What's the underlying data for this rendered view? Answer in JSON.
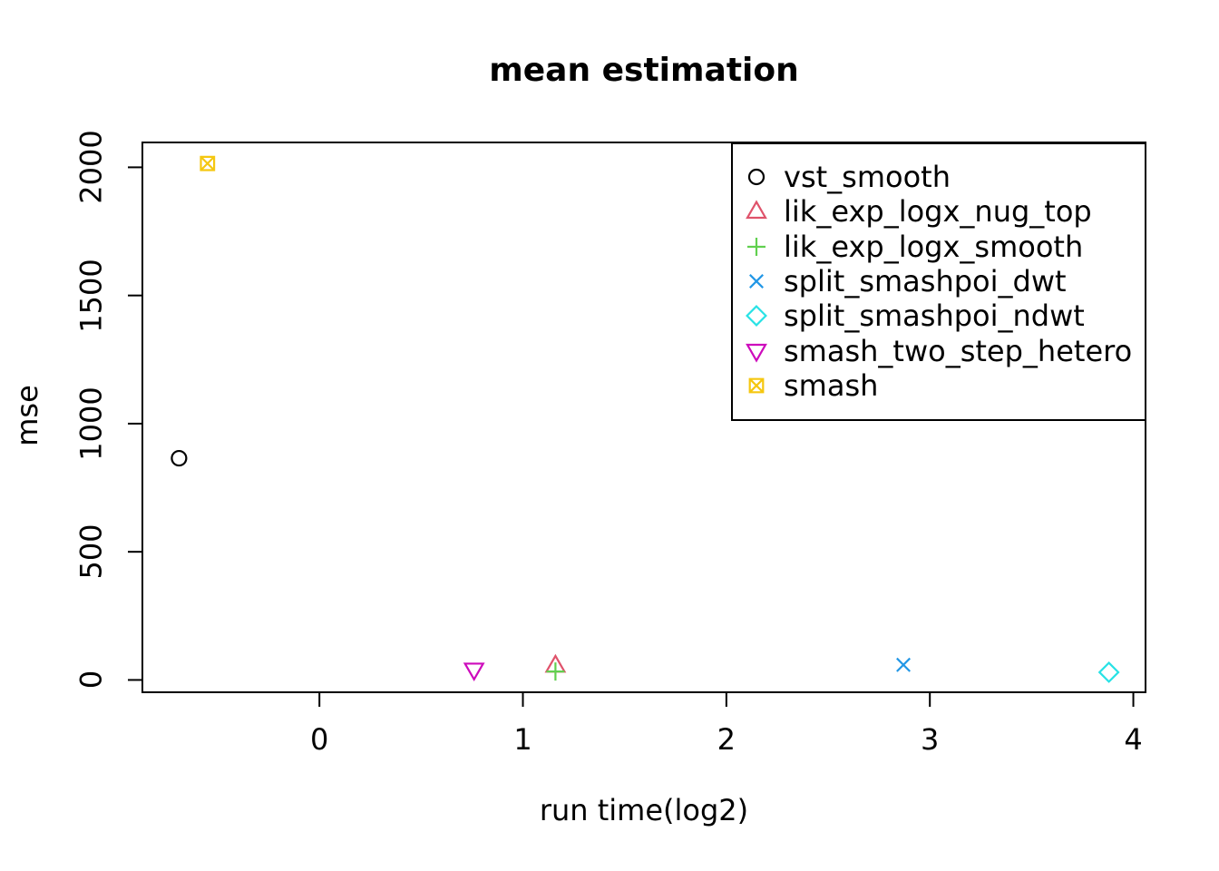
{
  "chart_data": {
    "type": "scatter",
    "title": "mean estimation",
    "xlabel": "run time(log2)",
    "ylabel": "mse",
    "xlim": [
      -0.87,
      4.06
    ],
    "ylim": [
      -48,
      2097
    ],
    "x_ticks": [
      0,
      1,
      2,
      3,
      4
    ],
    "y_ticks": [
      0,
      500,
      1000,
      1500,
      2000
    ],
    "grid": false,
    "legend_position": "top-right",
    "series": [
      {
        "name": "vst_smooth",
        "marker": "circle",
        "color": "#000000",
        "points": [
          {
            "x": -0.69,
            "y": 865
          }
        ]
      },
      {
        "name": "lik_exp_logx_nug_top",
        "marker": "triangle-up",
        "color": "#DF536B",
        "points": [
          {
            "x": 1.16,
            "y": 57
          }
        ]
      },
      {
        "name": "lik_exp_logx_smooth",
        "marker": "plus",
        "color": "#61D04F",
        "points": [
          {
            "x": 1.16,
            "y": 33
          }
        ]
      },
      {
        "name": "split_smashpoi_dwt",
        "marker": "x",
        "color": "#2297E6",
        "points": [
          {
            "x": 2.87,
            "y": 59
          }
        ]
      },
      {
        "name": "split_smashpoi_ndwt",
        "marker": "diamond",
        "color": "#28E2E5",
        "points": [
          {
            "x": 3.88,
            "y": 30
          }
        ]
      },
      {
        "name": "smash_two_step_hetero",
        "marker": "triangle-down",
        "color": "#CD0BBC",
        "points": [
          {
            "x": 0.76,
            "y": 39
          }
        ]
      },
      {
        "name": "smash",
        "marker": "square-x",
        "color": "#F5C710",
        "points": [
          {
            "x": -0.55,
            "y": 2015
          }
        ]
      }
    ]
  }
}
